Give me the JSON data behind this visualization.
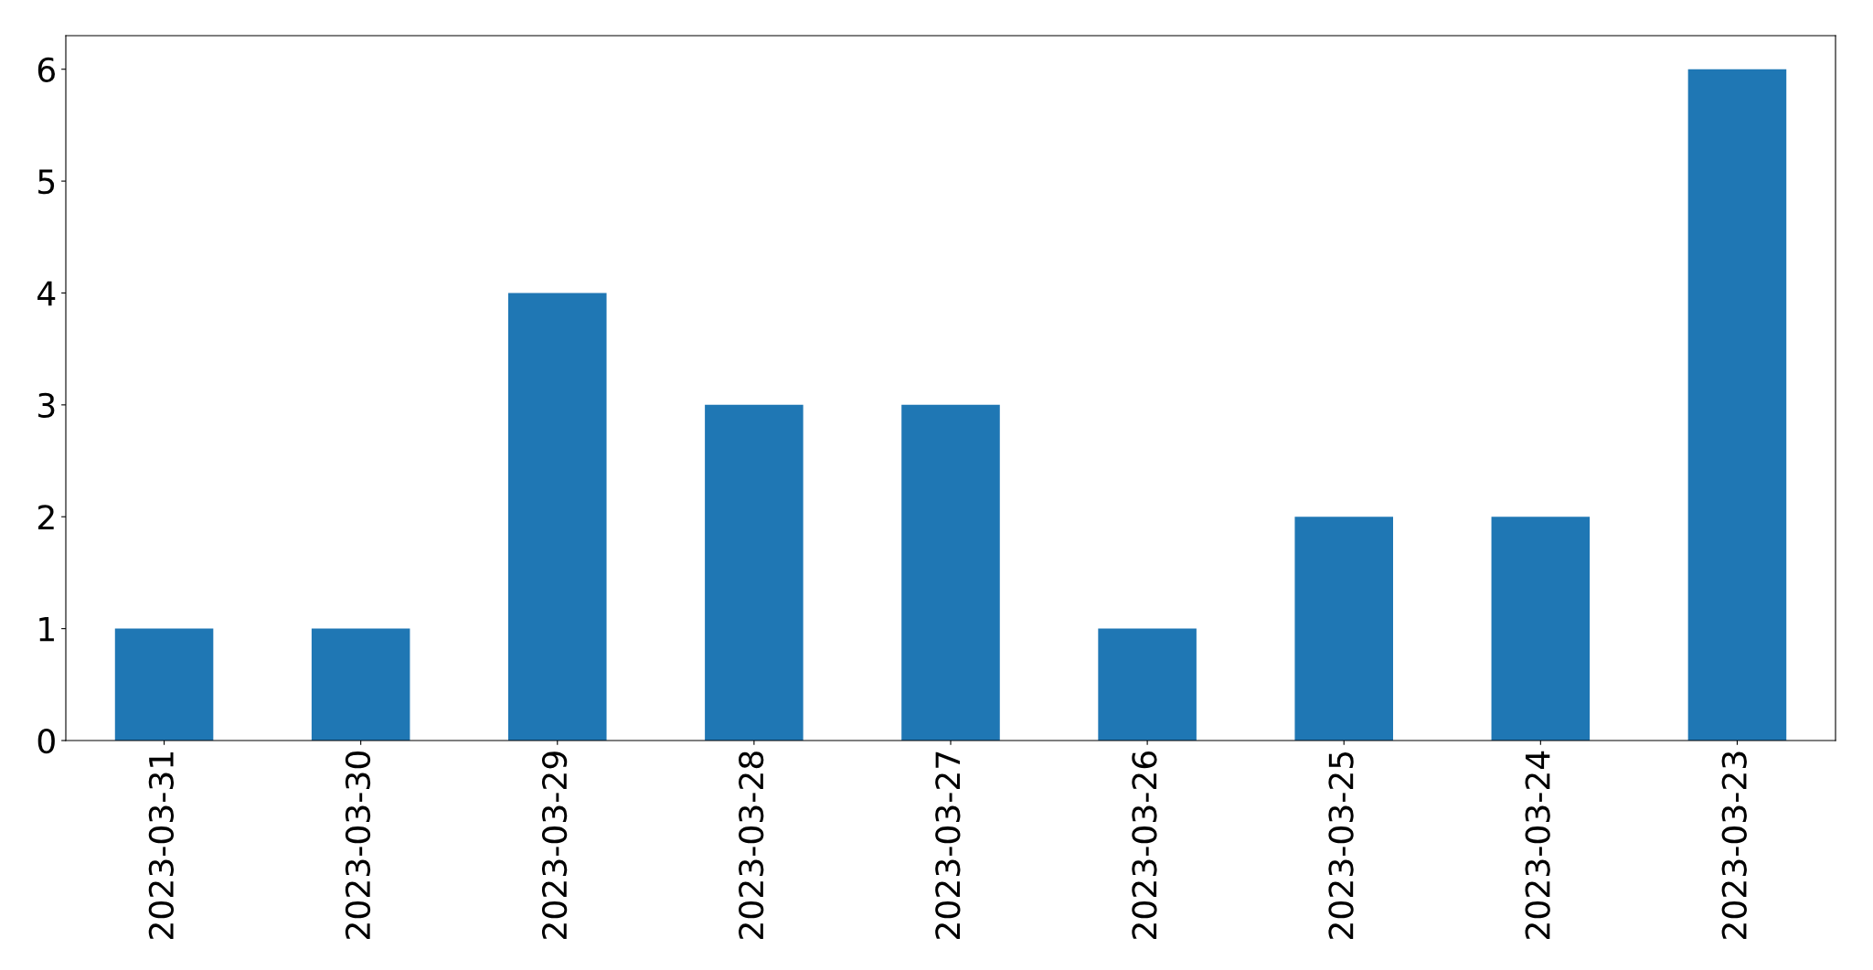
{
  "chart_data": {
    "type": "bar",
    "categories": [
      "2023-03-31",
      "2023-03-30",
      "2023-03-29",
      "2023-03-28",
      "2023-03-27",
      "2023-03-26",
      "2023-03-25",
      "2023-03-24",
      "2023-03-23"
    ],
    "values": [
      1,
      1,
      4,
      3,
      3,
      1,
      2,
      2,
      6
    ],
    "color": "#1f77b4",
    "ylim": [
      0,
      6.3
    ],
    "yticks": [
      0,
      1,
      2,
      3,
      4,
      5,
      6
    ],
    "grid": false,
    "legend": false
  }
}
